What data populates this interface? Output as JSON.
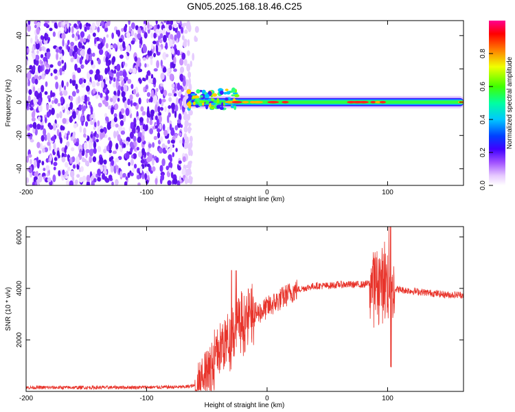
{
  "chart_data": [
    {
      "type": "heatmap",
      "title": "GN05.2025.168.18.46.C25",
      "xlabel": "Height of straight line (km)",
      "ylabel": "Frequency (Hz)",
      "xlim": [
        -200,
        163
      ],
      "ylim": [
        -50,
        49
      ],
      "xticks": [
        -200,
        -100,
        0,
        100
      ],
      "yticks": [
        -40,
        -20,
        0,
        20,
        40
      ],
      "colorbar": {
        "label": "Normalized spectral amplitude",
        "range": [
          0,
          1
        ],
        "ticks": [
          "0.0",
          "0.2",
          "0.4",
          "0.6",
          "0.8"
        ]
      },
      "features": {
        "noise_region_x": [
          -200,
          -57
        ],
        "tonal_line_start_x": -70,
        "tonal_line_freq_hz": 0
      }
    },
    {
      "type": "line",
      "xlabel": "Height of straight line (km)",
      "ylabel": "SNR (10 * v/v)",
      "xlim": [
        -200,
        163
      ],
      "ylim": [
        0,
        6400
      ],
      "xticks": [
        -200,
        -100,
        0,
        100
      ],
      "yticks": [
        2000,
        4000,
        6000
      ],
      "color": "#e8332a",
      "series": [
        {
          "x": [
            -200,
            -150,
            -100,
            -70,
            -60,
            -55,
            -50,
            -45,
            -40,
            -35,
            -30,
            -25,
            -20,
            -15,
            -10,
            -5,
            0,
            5,
            10,
            15,
            20,
            25,
            30,
            35,
            40,
            50,
            60,
            70,
            80,
            85,
            90,
            95,
            100,
            101,
            102,
            103,
            105,
            110,
            120,
            130,
            140,
            150,
            163
          ],
          "values": [
            150,
            150,
            160,
            170,
            220,
            400,
            700,
            1100,
            1600,
            1900,
            2100,
            2400,
            2700,
            2900,
            3000,
            3100,
            3250,
            3400,
            3550,
            3700,
            3850,
            3950,
            4000,
            4050,
            4100,
            4100,
            4150,
            4150,
            4150,
            4200,
            4200,
            4250,
            4300,
            4200,
            4100,
            4000,
            4000,
            3950,
            3900,
            3850,
            3800,
            3750,
            3750
          ]
        }
      ]
    }
  ]
}
